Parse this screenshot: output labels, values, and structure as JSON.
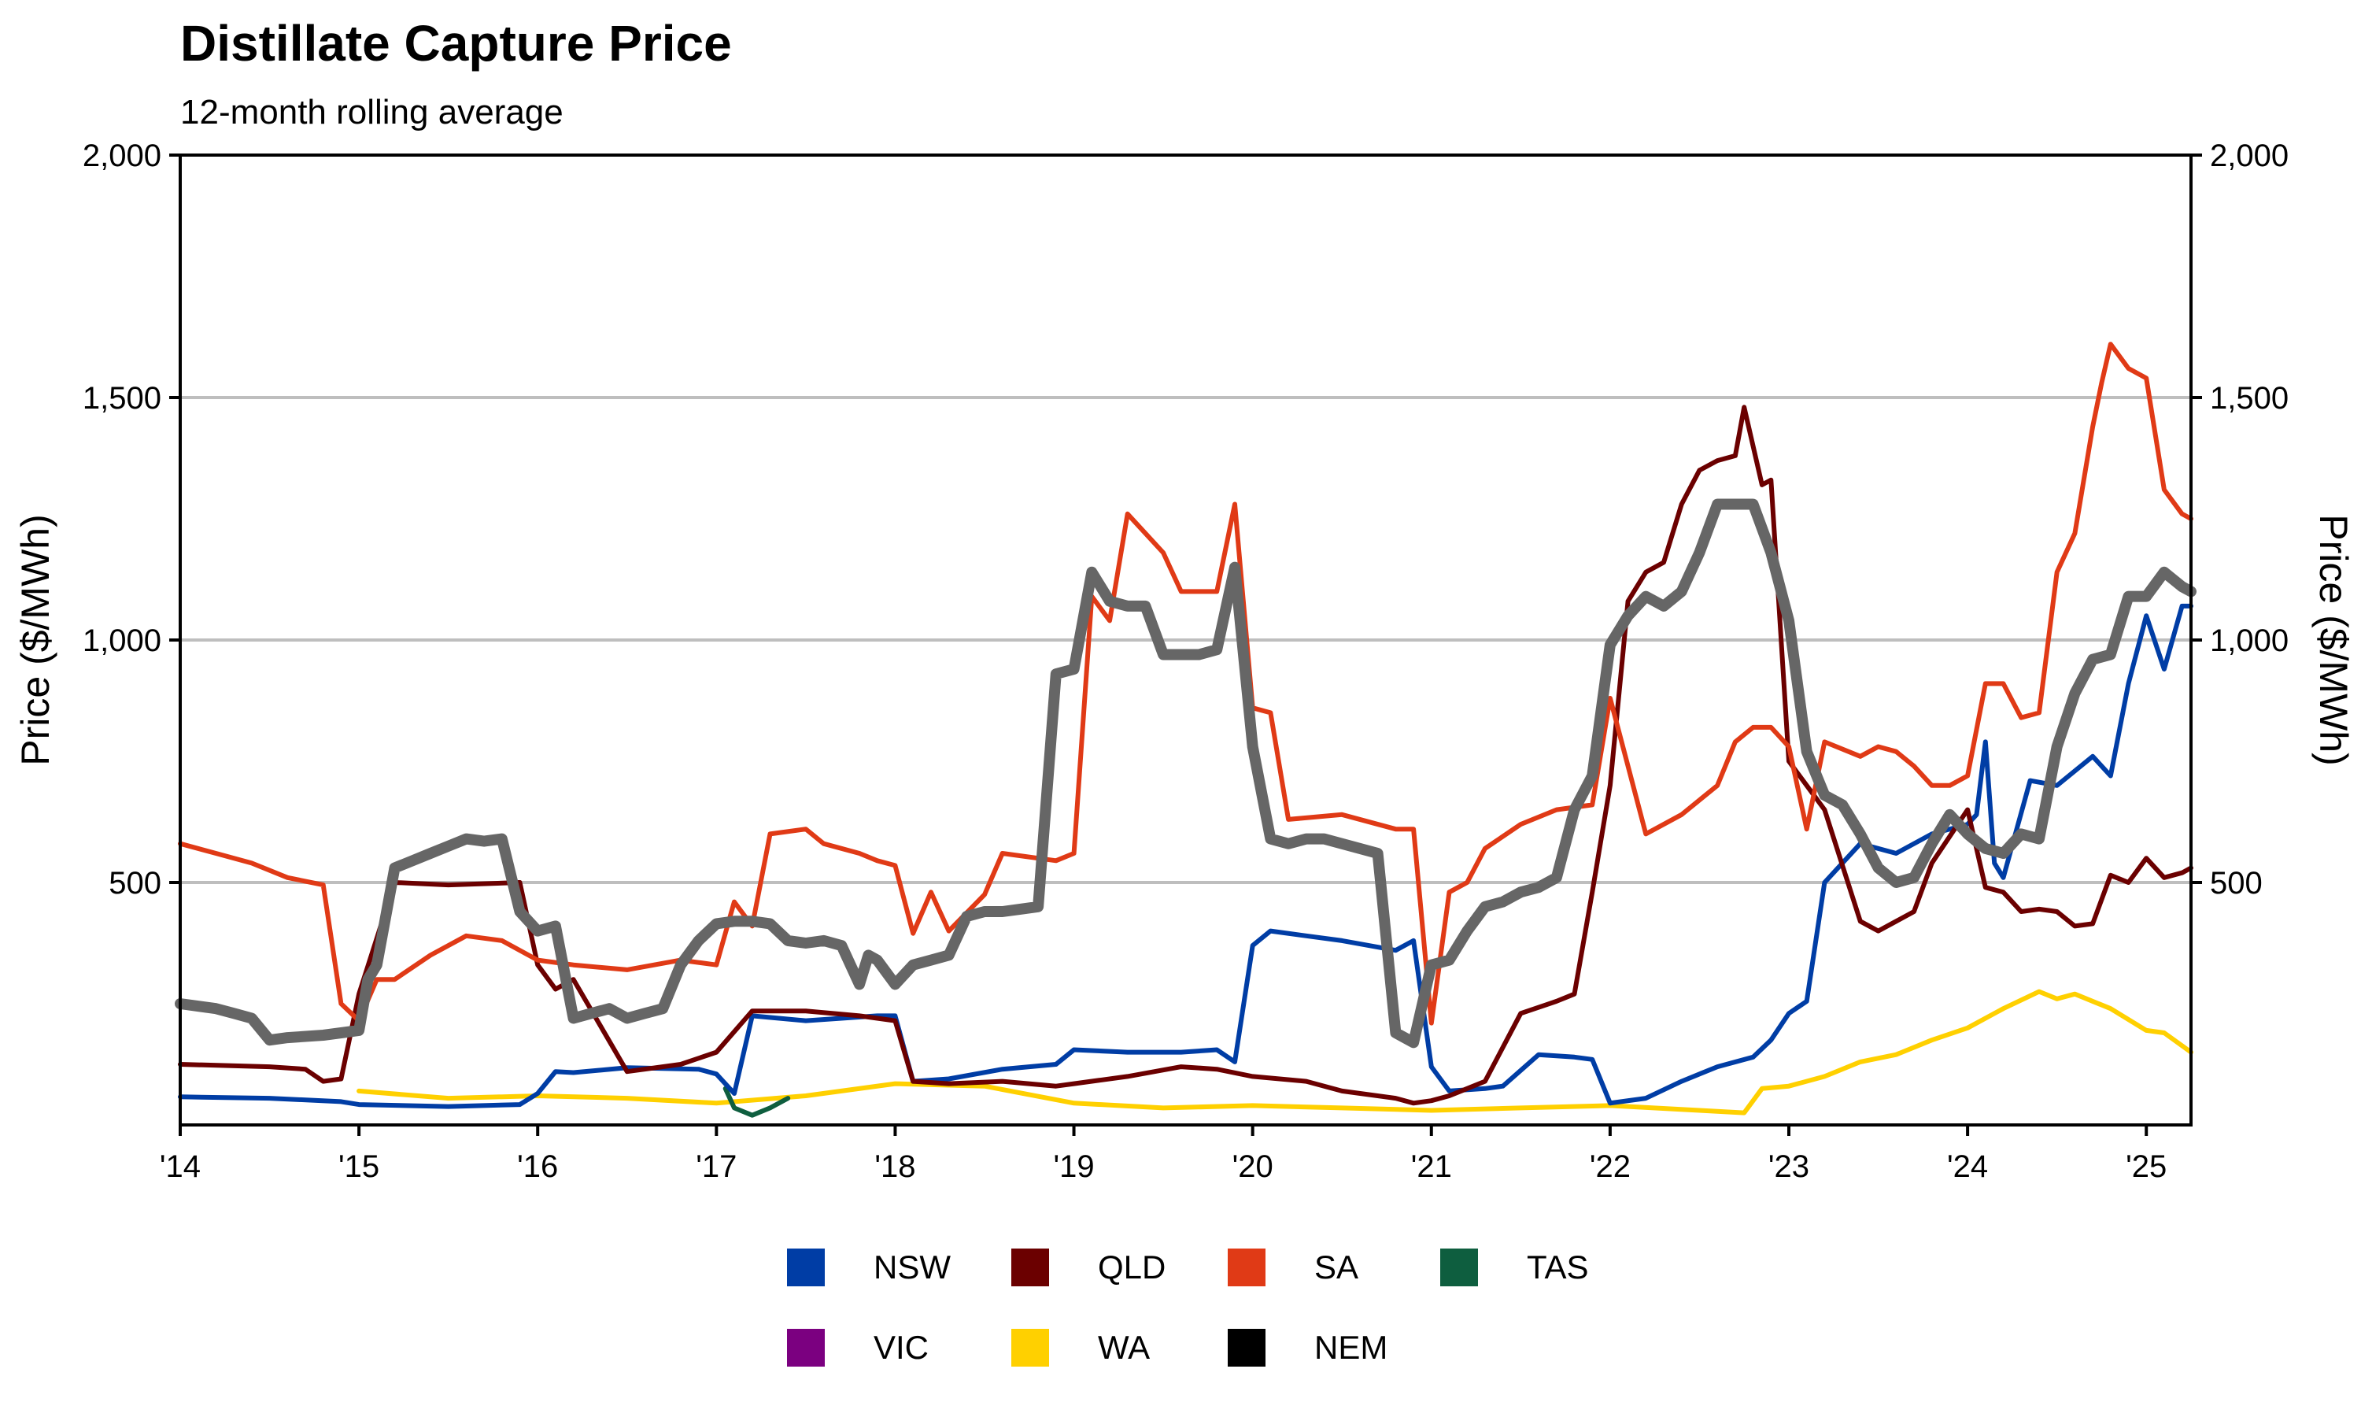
{
  "title": "Distillate Capture Price",
  "subtitle": "12-month rolling average",
  "chart_data": {
    "type": "line",
    "title": "Distillate Capture Price",
    "subtitle": "12-month rolling average",
    "xlabel": "",
    "ylabel": "Price ($/MWh)",
    "ylabel_right": "Price ($/MWh)",
    "xlim": [
      2014.0,
      2025.25
    ],
    "ylim": [
      0,
      2000
    ],
    "y_ticks": [
      500,
      1000,
      1500,
      2000
    ],
    "y_tick_labels": [
      "500",
      "1,000",
      "1,500",
      "2,000"
    ],
    "x_ticks": [
      2014,
      2015,
      2016,
      2017,
      2018,
      2019,
      2020,
      2021,
      2022,
      2023,
      2024,
      2025
    ],
    "x_tick_labels": [
      "'14",
      "'15",
      "'16",
      "'17",
      "'18",
      "'19",
      "'20",
      "'21",
      "'22",
      "'23",
      "'24",
      "'25"
    ],
    "grid": "horizontal",
    "legend_position": "bottom",
    "series": [
      {
        "name": "NSW",
        "color": "#003DA5",
        "width": 6,
        "x": [
          2014.0,
          2014.5,
          2014.9,
          2015.0,
          2015.5,
          2015.9,
          2016.0,
          2016.1,
          2016.2,
          2016.5,
          2016.9,
          2017.0,
          2017.1,
          2017.2,
          2017.5,
          2017.9,
          2018.0,
          2018.1,
          2018.3,
          2018.6,
          2018.9,
          2019.0,
          2019.3,
          2019.6,
          2019.8,
          2019.9,
          2020.0,
          2020.1,
          2020.3,
          2020.5,
          2020.8,
          2020.9,
          2021.0,
          2021.1,
          2021.3,
          2021.4,
          2021.6,
          2021.8,
          2021.9,
          2022.0,
          2022.2,
          2022.4,
          2022.6,
          2022.8,
          2022.9,
          2023.0,
          2023.1,
          2023.2,
          2023.4,
          2023.6,
          2023.8,
          2024.0,
          2024.05,
          2024.1,
          2024.15,
          2024.2,
          2024.35,
          2024.5,
          2024.7,
          2024.8,
          2024.9,
          2025.0,
          2025.1,
          2025.2,
          2025.25
        ],
        "y": [
          58,
          55,
          48,
          42,
          38,
          42,
          65,
          110,
          108,
          118,
          115,
          105,
          65,
          225,
          215,
          225,
          225,
          90,
          95,
          115,
          125,
          155,
          150,
          150,
          155,
          130,
          370,
          400,
          390,
          380,
          360,
          380,
          120,
          70,
          75,
          80,
          145,
          140,
          135,
          45,
          55,
          90,
          120,
          140,
          175,
          230,
          255,
          500,
          580,
          560,
          600,
          620,
          640,
          790,
          540,
          510,
          710,
          700,
          760,
          720,
          910,
          1050,
          940,
          1070,
          1070
        ]
      },
      {
        "name": "QLD",
        "color": "#6B0000",
        "width": 6,
        "x": [
          2014.0,
          2014.5,
          2014.7,
          2014.8,
          2014.9,
          2015.0,
          2015.2,
          2015.5,
          2015.9,
          2016.0,
          2016.1,
          2016.2,
          2016.5,
          2016.8,
          2017.0,
          2017.2,
          2017.5,
          2017.8,
          2018.0,
          2018.1,
          2018.3,
          2018.6,
          2018.9,
          2019.0,
          2019.3,
          2019.6,
          2019.8,
          2020.0,
          2020.3,
          2020.5,
          2020.8,
          2020.9,
          2021.0,
          2021.1,
          2021.2,
          2021.3,
          2021.5,
          2021.7,
          2021.8,
          2021.9,
          2022.0,
          2022.1,
          2022.2,
          2022.3,
          2022.4,
          2022.5,
          2022.6,
          2022.7,
          2022.75,
          2022.85,
          2022.9,
          2023.0,
          2023.1,
          2023.2,
          2023.4,
          2023.5,
          2023.6,
          2023.7,
          2023.8,
          2024.0,
          2024.1,
          2024.2,
          2024.3,
          2024.4,
          2024.5,
          2024.6,
          2024.7,
          2024.8,
          2024.9,
          2025.0,
          2025.1,
          2025.2,
          2025.25
        ],
        "y": [
          125,
          120,
          115,
          90,
          95,
          270,
          500,
          495,
          500,
          330,
          280,
          300,
          110,
          125,
          150,
          235,
          235,
          225,
          215,
          90,
          85,
          90,
          80,
          85,
          100,
          120,
          115,
          100,
          90,
          70,
          55,
          45,
          50,
          60,
          75,
          90,
          230,
          255,
          270,
          480,
          700,
          1080,
          1140,
          1160,
          1280,
          1350,
          1370,
          1380,
          1480,
          1320,
          1330,
          750,
          700,
          650,
          420,
          400,
          420,
          440,
          540,
          650,
          490,
          480,
          440,
          445,
          440,
          410,
          415,
          515,
          500,
          550,
          510,
          520,
          530
        ]
      },
      {
        "name": "SA",
        "color": "#E03A16",
        "width": 6,
        "x": [
          2014.0,
          2014.2,
          2014.4,
          2014.6,
          2014.8,
          2014.9,
          2015.0,
          2015.1,
          2015.2,
          2015.4,
          2015.6,
          2015.8,
          2016.0,
          2016.2,
          2016.5,
          2016.8,
          2017.0,
          2017.1,
          2017.2,
          2017.3,
          2017.5,
          2017.6,
          2017.8,
          2017.9,
          2018.0,
          2018.1,
          2018.2,
          2018.3,
          2018.5,
          2018.6,
          2018.9,
          2019.0,
          2019.1,
          2019.2,
          2019.3,
          2019.5,
          2019.6,
          2019.8,
          2019.9,
          2020.0,
          2020.1,
          2020.2,
          2020.5,
          2020.8,
          2020.9,
          2021.0,
          2021.1,
          2021.2,
          2021.3,
          2021.5,
          2021.7,
          2021.9,
          2022.0,
          2022.2,
          2022.4,
          2022.6,
          2022.7,
          2022.8,
          2022.9,
          2023.0,
          2023.1,
          2023.2,
          2023.4,
          2023.5,
          2023.6,
          2023.7,
          2023.8,
          2023.9,
          2024.0,
          2024.1,
          2024.2,
          2024.3,
          2024.4,
          2024.5,
          2024.6,
          2024.7,
          2024.75,
          2024.8,
          2024.9,
          2025.0,
          2025.1,
          2025.2,
          2025.25
        ],
        "y": [
          580,
          560,
          540,
          510,
          495,
          250,
          215,
          300,
          300,
          350,
          390,
          380,
          340,
          330,
          320,
          340,
          330,
          460,
          410,
          600,
          610,
          580,
          560,
          545,
          535,
          395,
          480,
          400,
          475,
          560,
          545,
          560,
          1090,
          1040,
          1260,
          1180,
          1100,
          1100,
          1280,
          860,
          850,
          630,
          640,
          610,
          610,
          210,
          480,
          500,
          570,
          620,
          650,
          660,
          880,
          600,
          640,
          700,
          790,
          820,
          820,
          780,
          610,
          790,
          760,
          780,
          770,
          740,
          700,
          700,
          720,
          910,
          910,
          840,
          850,
          1140,
          1220,
          1440,
          1530,
          1610,
          1560,
          1540,
          1310,
          1260,
          1250
        ]
      },
      {
        "name": "TAS",
        "color": "#0E5E3F",
        "width": 6,
        "x": [
          2017.05,
          2017.1,
          2017.2,
          2017.3,
          2017.4
        ],
        "y": [
          75,
          35,
          20,
          35,
          55
        ]
      },
      {
        "name": "VIC",
        "color": "#7B0080",
        "width": 6,
        "x": [],
        "y": []
      },
      {
        "name": "WA",
        "color": "#FFD000",
        "width": 6,
        "x": [
          2015.0,
          2015.5,
          2016.0,
          2016.5,
          2017.0,
          2017.5,
          2018.0,
          2018.5,
          2019.0,
          2019.5,
          2020.0,
          2020.5,
          2021.0,
          2021.5,
          2022.0,
          2022.5,
          2022.75,
          2022.85,
          2023.0,
          2023.2,
          2023.4,
          2023.6,
          2023.8,
          2024.0,
          2024.2,
          2024.4,
          2024.5,
          2024.6,
          2024.8,
          2025.0,
          2025.1,
          2025.25
        ],
        "y": [
          70,
          55,
          60,
          55,
          45,
          60,
          85,
          80,
          45,
          35,
          40,
          35,
          30,
          35,
          40,
          30,
          25,
          75,
          80,
          100,
          130,
          145,
          175,
          200,
          240,
          275,
          260,
          270,
          240,
          195,
          190,
          150
        ]
      },
      {
        "name": "NEM",
        "color": "#666666",
        "width": 14,
        "x": [
          2014.0,
          2014.2,
          2014.3,
          2014.4,
          2014.5,
          2014.6,
          2014.8,
          2014.9,
          2015.0,
          2015.05,
          2015.1,
          2015.2,
          2015.3,
          2015.4,
          2015.5,
          2015.6,
          2015.7,
          2015.8,
          2015.9,
          2016.0,
          2016.1,
          2016.2,
          2016.3,
          2016.4,
          2016.5,
          2016.6,
          2016.7,
          2016.8,
          2016.9,
          2017.0,
          2017.1,
          2017.2,
          2017.3,
          2017.4,
          2017.5,
          2017.6,
          2017.7,
          2017.8,
          2017.85,
          2017.9,
          2018.0,
          2018.1,
          2018.2,
          2018.3,
          2018.4,
          2018.5,
          2018.6,
          2018.7,
          2018.8,
          2018.9,
          2019.0,
          2019.1,
          2019.2,
          2019.3,
          2019.4,
          2019.5,
          2019.6,
          2019.7,
          2019.8,
          2019.9,
          2020.0,
          2020.1,
          2020.2,
          2020.3,
          2020.4,
          2020.5,
          2020.6,
          2020.7,
          2020.8,
          2020.9,
          2021.0,
          2021.1,
          2021.2,
          2021.3,
          2021.4,
          2021.5,
          2021.6,
          2021.7,
          2021.8,
          2021.9,
          2022.0,
          2022.1,
          2022.2,
          2022.3,
          2022.4,
          2022.5,
          2022.6,
          2022.7,
          2022.8,
          2022.9,
          2023.0,
          2023.1,
          2023.2,
          2023.3,
          2023.4,
          2023.5,
          2023.6,
          2023.7,
          2023.8,
          2023.9,
          2024.0,
          2024.1,
          2024.2,
          2024.3,
          2024.4,
          2024.5,
          2024.6,
          2024.7,
          2024.8,
          2024.9,
          2025.0,
          2025.1,
          2025.2,
          2025.25
        ],
        "y": [
          250,
          240,
          230,
          220,
          175,
          180,
          185,
          190,
          195,
          300,
          330,
          530,
          545,
          560,
          575,
          590,
          585,
          590,
          440,
          400,
          410,
          220,
          230,
          240,
          220,
          230,
          240,
          330,
          380,
          415,
          420,
          420,
          415,
          380,
          375,
          380,
          370,
          290,
          350,
          340,
          290,
          330,
          340,
          350,
          430,
          440,
          440,
          445,
          450,
          930,
          940,
          1140,
          1080,
          1070,
          1070,
          970,
          970,
          970,
          980,
          1150,
          780,
          590,
          580,
          590,
          590,
          580,
          570,
          560,
          190,
          170,
          330,
          340,
          400,
          450,
          460,
          480,
          490,
          510,
          650,
          720,
          990,
          1050,
          1090,
          1070,
          1100,
          1180,
          1280,
          1280,
          1280,
          1180,
          1040,
          770,
          680,
          660,
          600,
          530,
          500,
          510,
          580,
          640,
          600,
          570,
          560,
          600,
          590,
          780,
          890,
          960,
          970,
          1090,
          1090,
          1140,
          1110,
          1100
        ]
      }
    ],
    "legend": [
      {
        "name": "NSW",
        "color": "#003DA5"
      },
      {
        "name": "QLD",
        "color": "#6B0000"
      },
      {
        "name": "SA",
        "color": "#E03A16"
      },
      {
        "name": "TAS",
        "color": "#0E5E3F"
      },
      {
        "name": "VIC",
        "color": "#7B0080"
      },
      {
        "name": "WA",
        "color": "#FFD000"
      },
      {
        "name": "NEM",
        "color": "#000000"
      }
    ]
  }
}
